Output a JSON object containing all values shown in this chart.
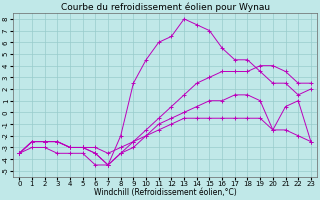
{
  "title": "Courbe du refroidissement éolien pour Wynau",
  "xlabel": "Windchill (Refroidissement éolien,°C)",
  "ylabel": "",
  "xlim": [
    -0.5,
    23.5
  ],
  "ylim": [
    -5.5,
    8.5
  ],
  "xticks": [
    0,
    1,
    2,
    3,
    4,
    5,
    6,
    7,
    8,
    9,
    10,
    11,
    12,
    13,
    14,
    15,
    16,
    17,
    18,
    19,
    20,
    21,
    22,
    23
  ],
  "yticks": [
    -5,
    -4,
    -3,
    -2,
    -1,
    0,
    1,
    2,
    3,
    4,
    5,
    6,
    7,
    8
  ],
  "background_color": "#c0e8e8",
  "grid_color": "#98cccc",
  "line_color": "#bb00bb",
  "lines": [
    {
      "x": [
        0,
        1,
        2,
        3,
        4,
        5,
        6,
        7,
        8,
        9,
        10,
        11,
        12,
        13,
        14,
        15,
        16,
        17,
        18,
        19,
        20,
        21,
        22,
        23
      ],
      "y": [
        -3.5,
        -3.0,
        -3.0,
        -3.5,
        -3.5,
        -3.5,
        -4.5,
        -4.5,
        -2.0,
        2.5,
        4.5,
        6.0,
        6.5,
        8.0,
        7.5,
        7.0,
        5.5,
        4.5,
        4.5,
        3.5,
        2.5,
        2.5,
        1.5,
        2.0
      ]
    },
    {
      "x": [
        0,
        1,
        2,
        3,
        4,
        5,
        6,
        7,
        8,
        9,
        10,
        11,
        12,
        13,
        14,
        15,
        16,
        17,
        18,
        19,
        20,
        21,
        22,
        23
      ],
      "y": [
        -3.5,
        -2.5,
        -2.5,
        -2.5,
        -3.0,
        -3.0,
        -3.5,
        -4.5,
        -3.5,
        -2.5,
        -1.5,
        -0.5,
        0.5,
        1.5,
        2.5,
        3.0,
        3.5,
        3.5,
        3.5,
        4.0,
        4.0,
        3.5,
        2.5,
        2.5
      ]
    },
    {
      "x": [
        0,
        1,
        2,
        3,
        4,
        5,
        6,
        7,
        8,
        9,
        10,
        11,
        12,
        13,
        14,
        15,
        16,
        17,
        18,
        19,
        20,
        21,
        22,
        23
      ],
      "y": [
        -3.5,
        -2.5,
        -2.5,
        -2.5,
        -3.0,
        -3.0,
        -3.0,
        -3.5,
        -3.0,
        -2.5,
        -2.0,
        -1.5,
        -1.0,
        -0.5,
        -0.5,
        -0.5,
        -0.5,
        -0.5,
        -0.5,
        -0.5,
        -1.5,
        -1.5,
        -2.0,
        -2.5
      ]
    },
    {
      "x": [
        0,
        1,
        2,
        3,
        4,
        5,
        6,
        7,
        8,
        9,
        10,
        11,
        12,
        13,
        14,
        15,
        16,
        17,
        18,
        19,
        20,
        21,
        22,
        23
      ],
      "y": [
        -3.5,
        -2.5,
        -2.5,
        -2.5,
        -3.0,
        -3.0,
        -3.5,
        -4.5,
        -3.5,
        -3.0,
        -2.0,
        -1.0,
        -0.5,
        0.0,
        0.5,
        1.0,
        1.0,
        1.5,
        1.5,
        1.0,
        -1.5,
        0.5,
        1.0,
        -2.5
      ]
    }
  ],
  "title_fontsize": 6.5,
  "label_fontsize": 5.5,
  "tick_fontsize": 5
}
